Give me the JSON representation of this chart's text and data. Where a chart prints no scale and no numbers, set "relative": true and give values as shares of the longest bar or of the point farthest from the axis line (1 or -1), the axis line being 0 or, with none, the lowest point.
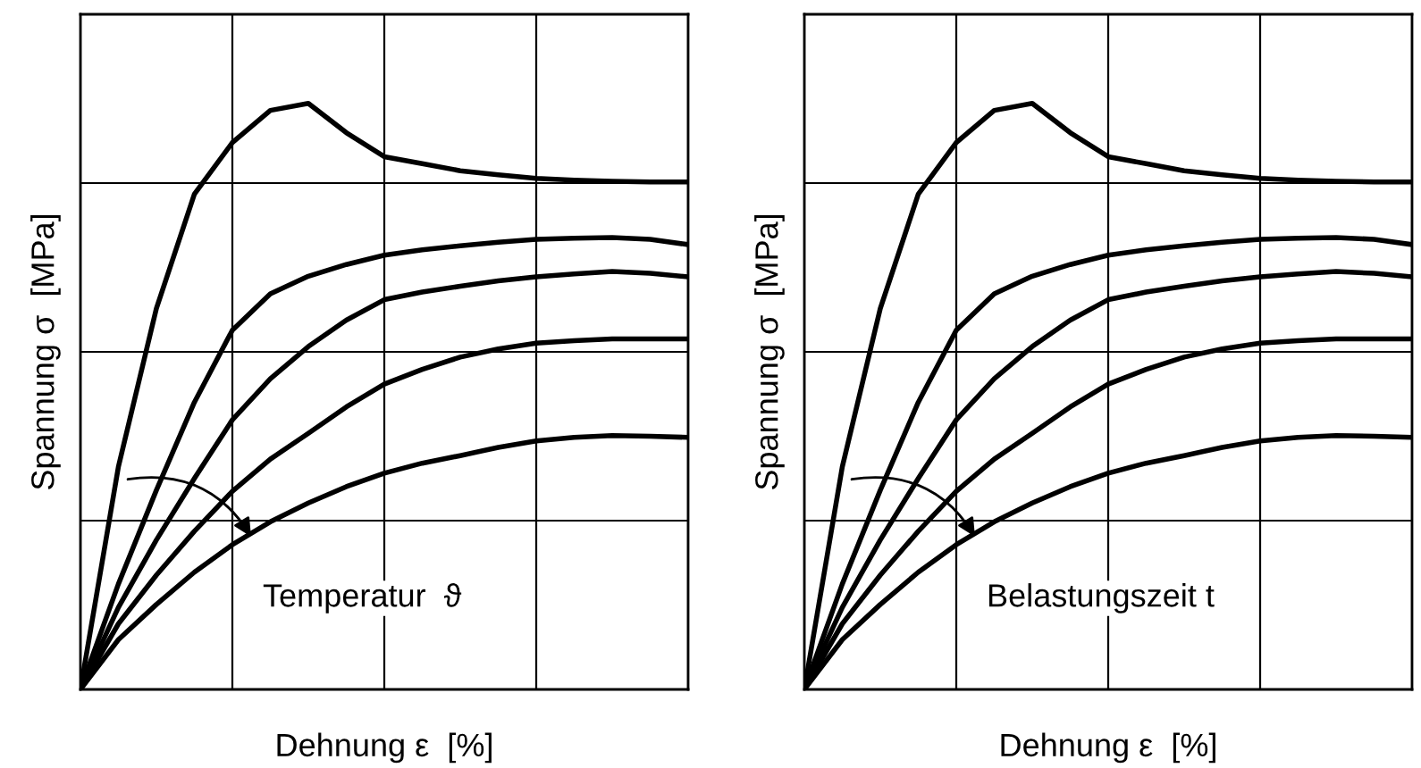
{
  "chart_data": [
    {
      "type": "line",
      "relative": true,
      "xlabel": "Dehnung ε  [%]",
      "ylabel": "Spannung σ  [MPa]",
      "annotations": [
        "Temperatur  ϑ"
      ],
      "grid": true,
      "marker": "none",
      "line_style": "solid",
      "categories": [
        null,
        null,
        null,
        null,
        null,
        null,
        null,
        null,
        null,
        null,
        null,
        null,
        null,
        null,
        null,
        null,
        null
      ],
      "series": [
        {
          "color": "#000000",
          "values": [
            0,
            0.38,
            0.65,
            0.845,
            0.933,
            0.988,
            1.0,
            0.95,
            0.909,
            0.897,
            0.885,
            0.878,
            0.872,
            0.869,
            0.867,
            0.866,
            0.866
          ]
        },
        {
          "color": "#000000",
          "values": [
            0,
            0.18,
            0.34,
            0.49,
            0.613,
            0.675,
            0.705,
            0.725,
            0.741,
            0.75,
            0.757,
            0.763,
            0.768,
            0.77,
            0.771,
            0.768,
            0.759
          ]
        },
        {
          "color": "#000000",
          "values": [
            0,
            0.14,
            0.255,
            0.36,
            0.46,
            0.53,
            0.585,
            0.63,
            0.665,
            0.678,
            0.688,
            0.697,
            0.704,
            0.709,
            0.713,
            0.71,
            0.704
          ]
        },
        {
          "color": "#000000",
          "values": [
            0,
            0.112,
            0.195,
            0.27,
            0.338,
            0.393,
            0.437,
            0.482,
            0.521,
            0.546,
            0.567,
            0.581,
            0.591,
            0.595,
            0.598,
            0.598,
            0.598
          ]
        },
        {
          "color": "#000000",
          "values": [
            0,
            0.085,
            0.145,
            0.2,
            0.247,
            0.286,
            0.318,
            0.346,
            0.369,
            0.386,
            0.399,
            0.413,
            0.424,
            0.43,
            0.433,
            0.432,
            0.43
          ]
        }
      ]
    },
    {
      "type": "line",
      "relative": true,
      "xlabel": "Dehnung ε  [%]",
      "ylabel": "Spannung σ  [MPa]",
      "annotations": [
        "Belastungszeit t"
      ],
      "grid": true,
      "marker": "none",
      "line_style": "solid",
      "categories": [
        null,
        null,
        null,
        null,
        null,
        null,
        null,
        null,
        null,
        null,
        null,
        null,
        null,
        null,
        null,
        null,
        null
      ],
      "series": [
        {
          "color": "#000000",
          "values": [
            0,
            0.38,
            0.65,
            0.845,
            0.933,
            0.988,
            1.0,
            0.95,
            0.909,
            0.897,
            0.885,
            0.878,
            0.872,
            0.869,
            0.867,
            0.866,
            0.866
          ]
        },
        {
          "color": "#000000",
          "values": [
            0,
            0.18,
            0.34,
            0.49,
            0.613,
            0.675,
            0.705,
            0.725,
            0.741,
            0.75,
            0.757,
            0.763,
            0.768,
            0.77,
            0.771,
            0.768,
            0.759
          ]
        },
        {
          "color": "#000000",
          "values": [
            0,
            0.14,
            0.255,
            0.36,
            0.46,
            0.53,
            0.585,
            0.63,
            0.665,
            0.678,
            0.688,
            0.697,
            0.704,
            0.709,
            0.713,
            0.71,
            0.704
          ]
        },
        {
          "color": "#000000",
          "values": [
            0,
            0.112,
            0.195,
            0.27,
            0.338,
            0.393,
            0.437,
            0.482,
            0.521,
            0.546,
            0.567,
            0.581,
            0.591,
            0.595,
            0.598,
            0.598,
            0.598
          ]
        },
        {
          "color": "#000000",
          "values": [
            0,
            0.085,
            0.145,
            0.2,
            0.247,
            0.286,
            0.318,
            0.346,
            0.369,
            0.386,
            0.399,
            0.413,
            0.424,
            0.43,
            0.433,
            0.432,
            0.43
          ]
        }
      ]
    }
  ]
}
